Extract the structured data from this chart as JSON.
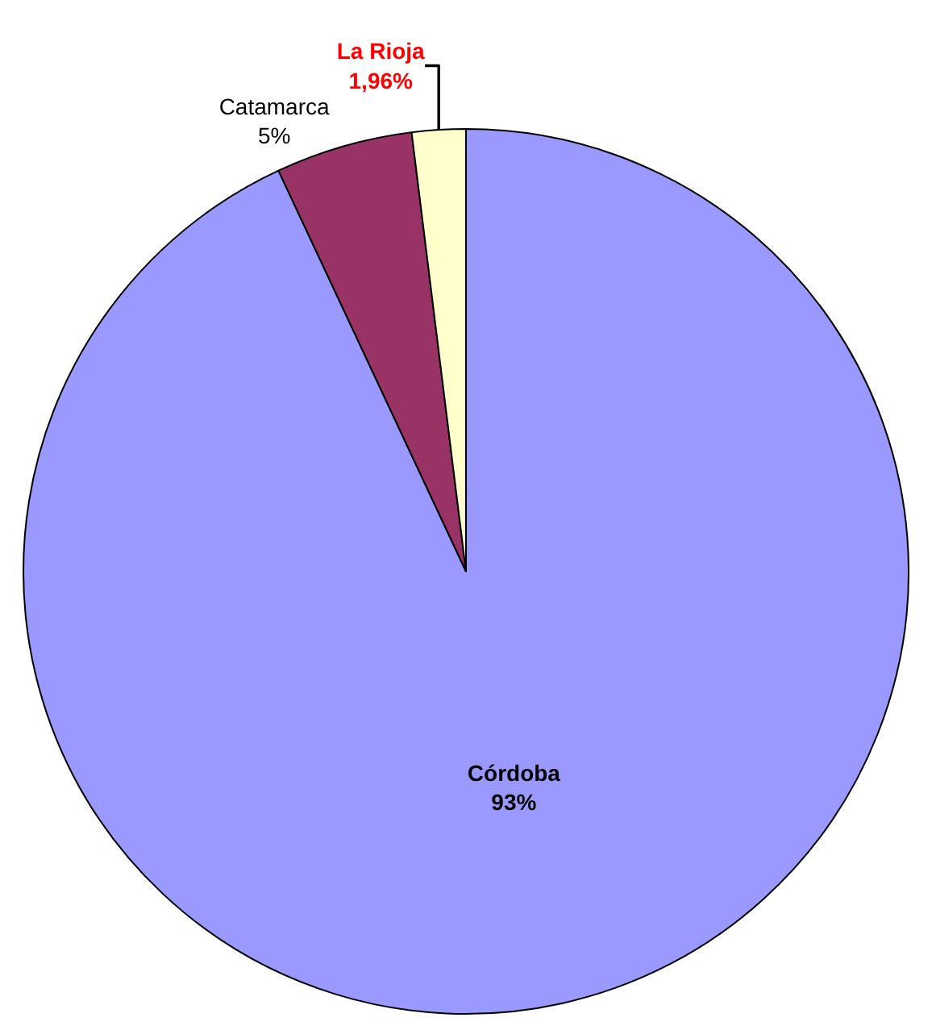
{
  "chart_data": {
    "type": "pie",
    "categories": [
      "Córdoba",
      "Catamarca",
      "La Rioja"
    ],
    "values": [
      93,
      5,
      1.96
    ],
    "value_labels": [
      "93%",
      "5%",
      "1,96%"
    ],
    "colors": [
      "#9999ff",
      "#993366",
      "#ffffcc"
    ],
    "legend": false
  }
}
